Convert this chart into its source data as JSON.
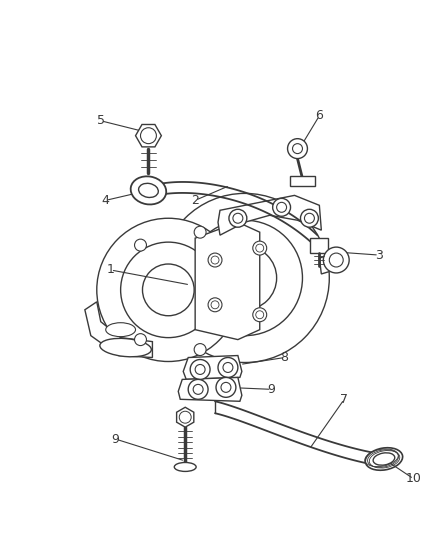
{
  "bg_color": "#ffffff",
  "line_color": "#3a3a3a",
  "label_color": "#3a3a3a",
  "figsize": [
    4.38,
    5.33
  ],
  "dpi": 100,
  "lw": 1.0
}
